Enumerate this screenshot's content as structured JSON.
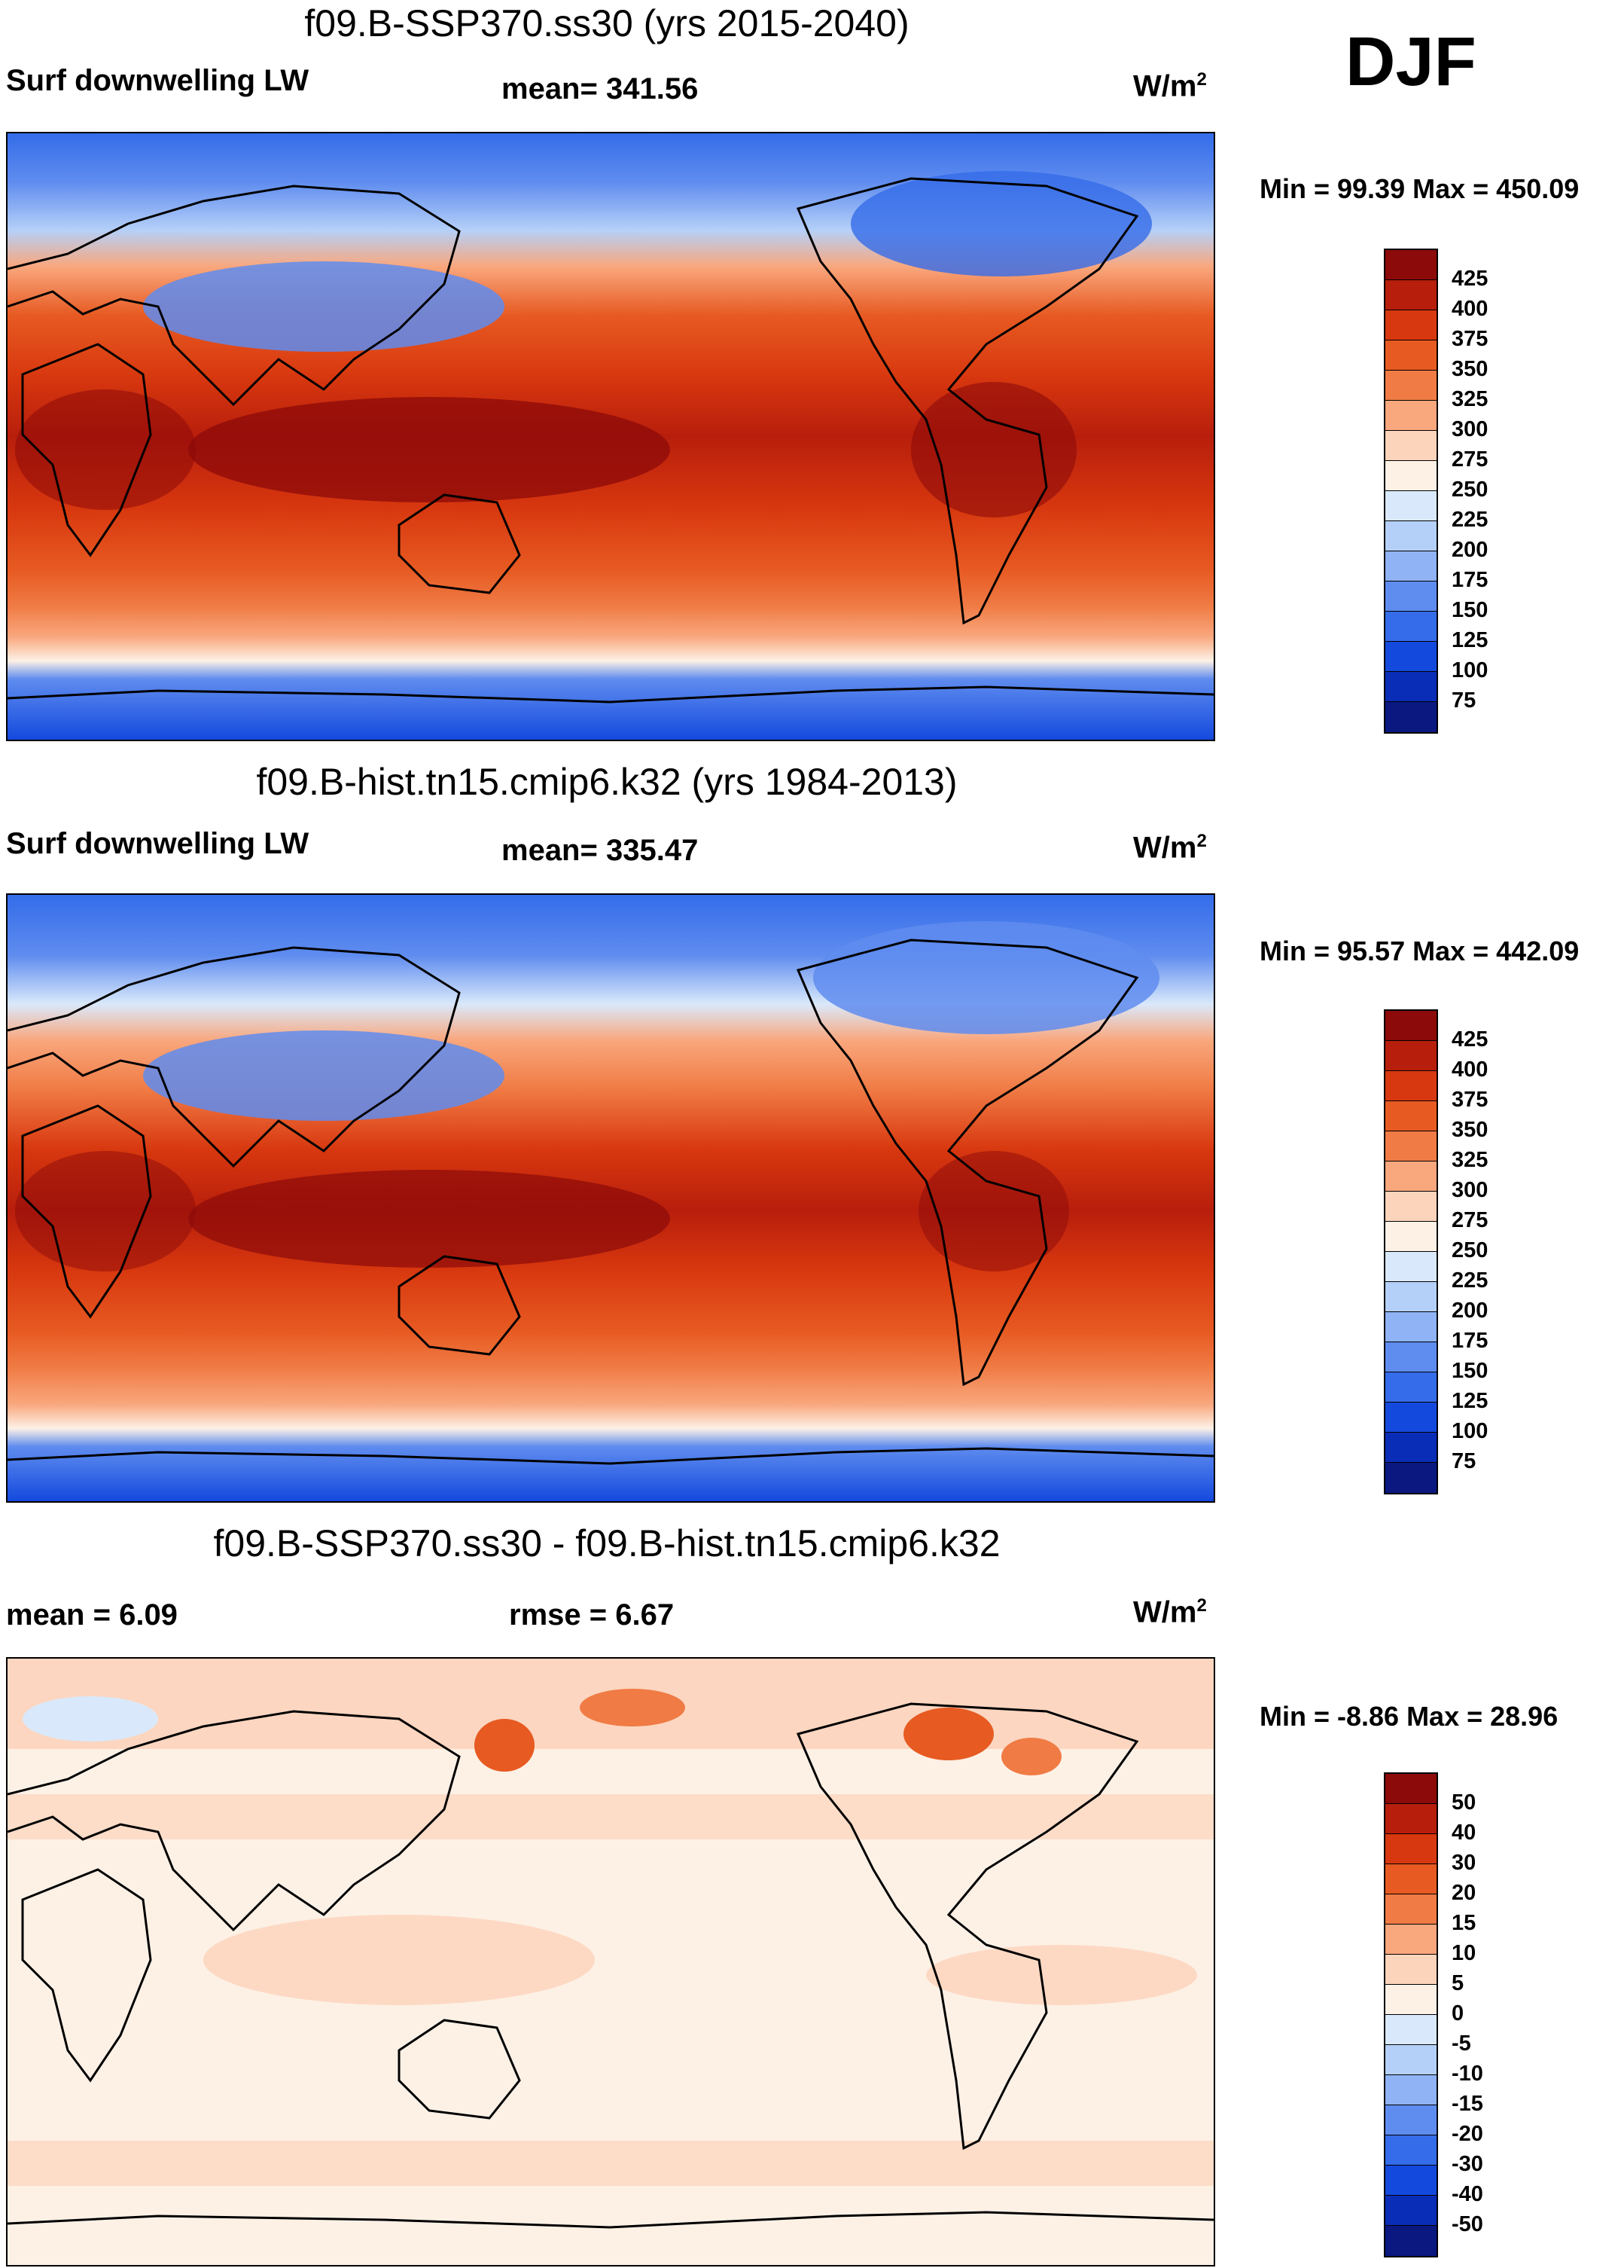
{
  "season": "DJF",
  "panels": [
    {
      "title": "f09.B-SSP370.ss30 (yrs 2015-2040)",
      "left_label": "Surf downwelling LW",
      "center_label": "mean= 341.56",
      "units": "W/m",
      "units_sup": "2",
      "minmax": "Min =  99.39 Max = 450.09"
    },
    {
      "title": "f09.B-hist.tn15.cmip6.k32 (yrs 1984-2013)",
      "left_label": "Surf downwelling LW",
      "center_label": "mean= 335.47",
      "units": "W/m",
      "units_sup": "2",
      "minmax": "Min =  95.57 Max = 442.09"
    },
    {
      "title": "f09.B-SSP370.ss30 - f09.B-hist.tn15.cmip6.k32",
      "left_label": "mean =    6.09",
      "center_label": "rmse =    6.67",
      "units": "W/m",
      "units_sup": "2",
      "minmax": "Min =  -8.86 Max =  28.96"
    }
  ],
  "colorbars": {
    "absolute": {
      "labels": [
        "425",
        "400",
        "375",
        "350",
        "325",
        "300",
        "275",
        "250",
        "225",
        "200",
        "175",
        "150",
        "125",
        "100",
        "75"
      ],
      "colors": [
        "#8c0a0a",
        "#b81e0c",
        "#d8380f",
        "#e75a22",
        "#f07b45",
        "#f9a77d",
        "#fcd3bb",
        "#fdf1e6",
        "#d9e9fb",
        "#b5d0f8",
        "#8fb3f4",
        "#5f8cef",
        "#346ce9",
        "#1449dd",
        "#0a2db8",
        "#0a1880"
      ]
    },
    "difference": {
      "labels": [
        "50",
        "40",
        "30",
        "20",
        "15",
        "10",
        "5",
        "0",
        "-5",
        "-10",
        "-15",
        "-20",
        "-30",
        "-40",
        "-50"
      ],
      "colors": [
        "#8c0a0a",
        "#b81e0c",
        "#d8380f",
        "#e75a22",
        "#f07b45",
        "#f9a77d",
        "#fcd3bb",
        "#fdf1e6",
        "#d9e9fb",
        "#b5d0f8",
        "#8fb3f4",
        "#5f8cef",
        "#346ce9",
        "#1449dd",
        "#0a2db8",
        "#0a1880"
      ]
    }
  }
}
